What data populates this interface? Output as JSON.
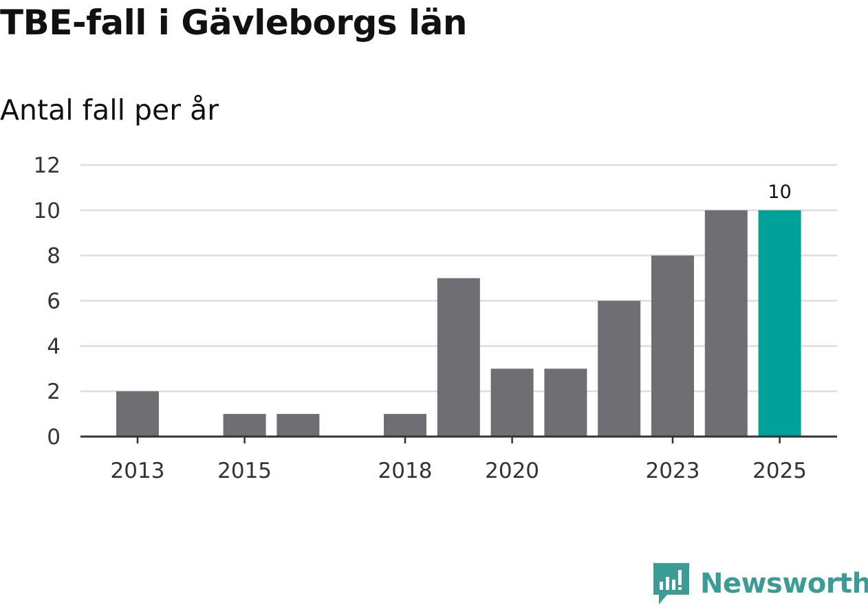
{
  "header": {
    "title": "TBE-fall i Gävleborgs län",
    "subtitle": "Antal fall per år"
  },
  "brand": {
    "name": "Newsworthy",
    "color": "#3a9c94"
  },
  "colors": {
    "bar": "#6f6e73",
    "highlight": "#00a199",
    "grid": "#dddddd",
    "axis": "#333333"
  },
  "chart_data": {
    "type": "bar",
    "title": "TBE-fall i Gävleborgs län",
    "subtitle": "Antal fall per år",
    "xlabel": "",
    "ylabel": "",
    "categories": [
      "2013",
      "2014",
      "2015",
      "2016",
      "2017",
      "2018",
      "2019",
      "2020",
      "2021",
      "2022",
      "2023",
      "2024",
      "2025"
    ],
    "values": [
      2,
      0,
      1,
      1,
      0,
      1,
      7,
      3,
      3,
      6,
      8,
      10,
      10
    ],
    "highlight_index": 12,
    "x_tick_labels": [
      "2013",
      "2015",
      "2018",
      "2020",
      "2023",
      "2025"
    ],
    "y_ticks": [
      0,
      2,
      4,
      6,
      8,
      10,
      12
    ],
    "ylim": [
      0,
      12
    ],
    "grid": true,
    "legend": "none",
    "annotations": [
      {
        "category": "2025",
        "label": "10"
      }
    ]
  }
}
